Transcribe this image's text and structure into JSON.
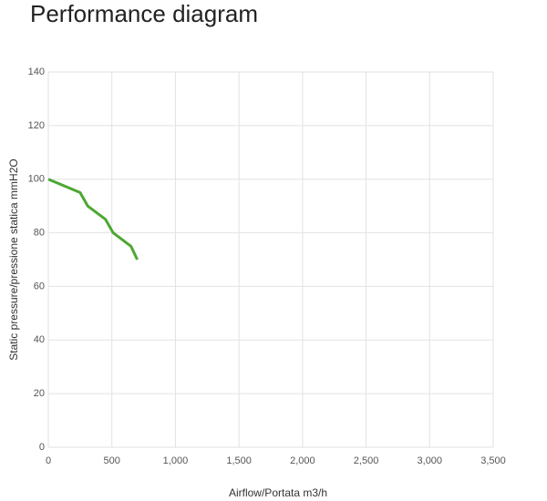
{
  "chart_data": {
    "type": "line",
    "title": "Performance diagram",
    "xlabel": "Airflow/Portata m3/h",
    "ylabel": "Static pressure/pressione statica mmH2O",
    "series": [
      {
        "color": "#4ca832",
        "x": [
          0,
          250,
          310,
          450,
          510,
          650,
          700
        ],
        "values": [
          100,
          95,
          90,
          85,
          80,
          75,
          70
        ]
      }
    ],
    "xlim": [
      0,
      3500
    ],
    "xticks": [
      0,
      500,
      {
        "value": 1000,
        "label": "1,000"
      },
      {
        "value": 1500,
        "label": "1,500"
      },
      {
        "value": 2000,
        "label": "2,000"
      },
      {
        "value": 2500,
        "label": "2,500"
      },
      {
        "value": 3000,
        "label": "3,000"
      },
      {
        "value": 3500,
        "label": "3,500"
      }
    ],
    "ylim": [
      0,
      140
    ],
    "yticks": [
      0,
      20,
      40,
      60,
      80,
      100,
      120,
      140
    ],
    "grid": true
  }
}
